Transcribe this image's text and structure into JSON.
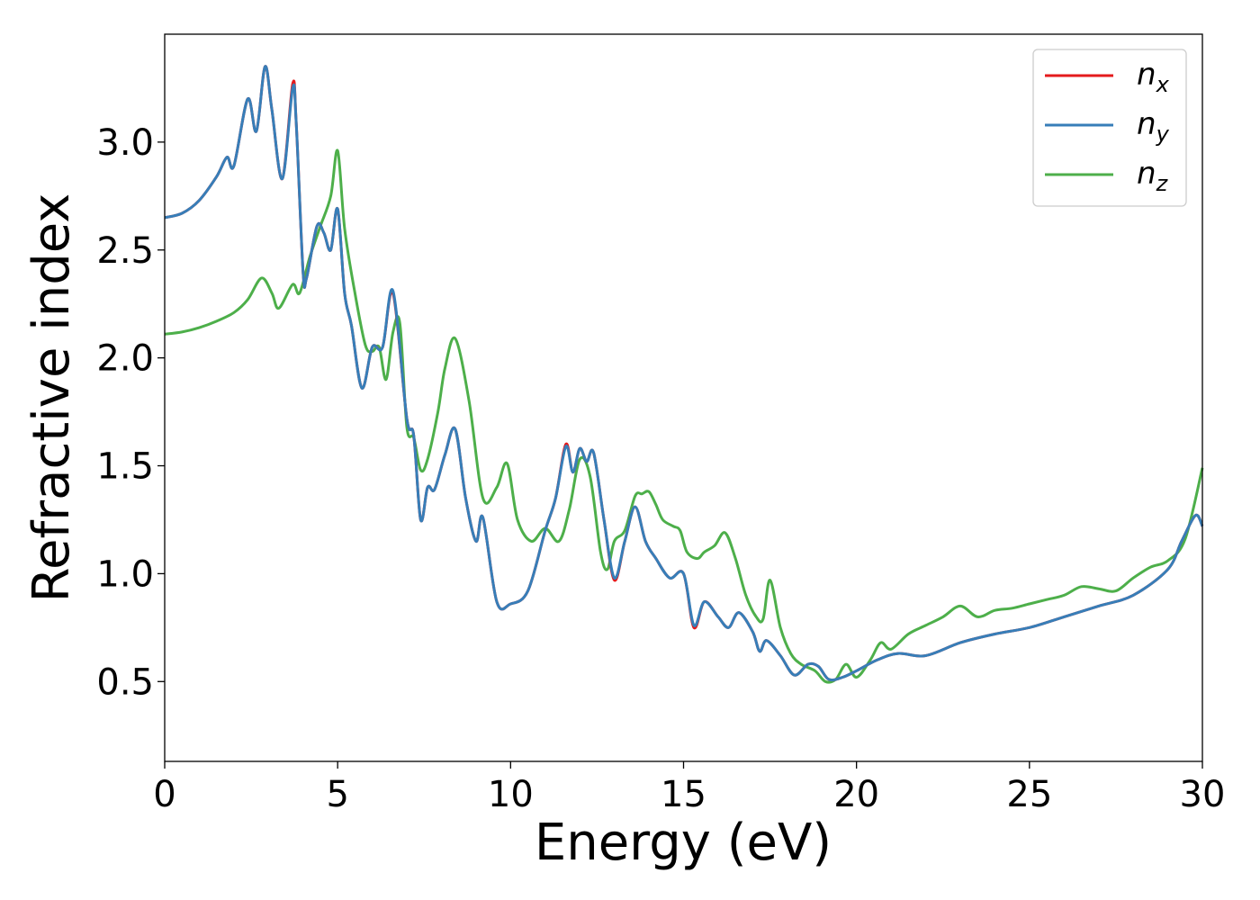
{
  "chart_data": {
    "type": "line",
    "title": "",
    "xlabel": "Energy (eV)",
    "ylabel": "Refractive index",
    "xlim": [
      0,
      30
    ],
    "ylim": [
      0.13,
      3.5
    ],
    "xticks": [
      0,
      5,
      10,
      15,
      20,
      25,
      30
    ],
    "xtick_labels": [
      "0",
      "5",
      "10",
      "15",
      "20",
      "25",
      "30"
    ],
    "yticks": [
      0.5,
      1.0,
      1.5,
      2.0,
      2.5,
      3.0
    ],
    "ytick_labels": [
      "0.5",
      "1.0",
      "1.5",
      "2.0",
      "2.5",
      "3.0"
    ],
    "grid": false,
    "legend_position": "top-right",
    "series": [
      {
        "name": "n_x",
        "label_main": "n",
        "label_sub": "x",
        "color": "#e41a1c",
        "x": [
          0,
          0.5,
          1.0,
          1.5,
          1.8,
          2.0,
          2.4,
          2.65,
          2.9,
          3.1,
          3.4,
          3.7,
          3.8,
          4.0,
          4.1,
          4.4,
          4.6,
          4.8,
          5.0,
          5.2,
          5.4,
          5.7,
          6.0,
          6.3,
          6.6,
          7.0,
          7.2,
          7.4,
          7.6,
          7.8,
          8.1,
          8.4,
          8.7,
          9.0,
          9.2,
          9.6,
          10.0,
          10.5,
          11.0,
          11.3,
          11.6,
          11.8,
          12.0,
          12.2,
          12.4,
          12.7,
          13.0,
          13.3,
          13.6,
          13.9,
          14.2,
          14.6,
          15.0,
          15.3,
          15.6,
          16.0,
          16.3,
          16.6,
          17.0,
          17.2,
          17.4,
          17.8,
          18.2,
          18.6,
          18.9,
          19.2,
          19.6,
          20.0,
          20.6,
          21.2,
          22.0,
          23.0,
          24.0,
          25.0,
          26.0,
          27.0,
          28.0,
          29.0,
          29.4,
          29.8,
          30.0
        ],
        "y": [
          2.65,
          2.67,
          2.73,
          2.84,
          2.93,
          2.89,
          3.2,
          3.05,
          3.35,
          3.15,
          2.83,
          3.27,
          3.1,
          2.4,
          2.37,
          2.61,
          2.58,
          2.5,
          2.69,
          2.3,
          2.15,
          1.86,
          2.05,
          2.05,
          2.3,
          1.72,
          1.64,
          1.25,
          1.4,
          1.39,
          1.55,
          1.67,
          1.35,
          1.15,
          1.26,
          0.87,
          0.86,
          0.92,
          1.2,
          1.35,
          1.6,
          1.47,
          1.58,
          1.52,
          1.56,
          1.25,
          0.97,
          1.15,
          1.31,
          1.15,
          1.07,
          0.98,
          1.0,
          0.75,
          0.87,
          0.8,
          0.75,
          0.82,
          0.73,
          0.64,
          0.69,
          0.62,
          0.53,
          0.58,
          0.57,
          0.51,
          0.52,
          0.55,
          0.6,
          0.63,
          0.62,
          0.68,
          0.72,
          0.75,
          0.8,
          0.85,
          0.9,
          1.02,
          1.15,
          1.27,
          1.22
        ]
      },
      {
        "name": "n_y",
        "label_main": "n",
        "label_sub": "y",
        "color": "#377eb8",
        "x": [
          0,
          0.5,
          1.0,
          1.5,
          1.8,
          2.0,
          2.4,
          2.65,
          2.9,
          3.1,
          3.4,
          3.7,
          3.8,
          4.0,
          4.1,
          4.4,
          4.6,
          4.8,
          5.0,
          5.2,
          5.4,
          5.7,
          6.0,
          6.3,
          6.6,
          7.0,
          7.2,
          7.4,
          7.6,
          7.8,
          8.1,
          8.4,
          8.7,
          9.0,
          9.2,
          9.6,
          10.0,
          10.5,
          11.0,
          11.3,
          11.6,
          11.8,
          12.0,
          12.2,
          12.4,
          12.7,
          13.0,
          13.3,
          13.6,
          13.9,
          14.2,
          14.6,
          15.0,
          15.3,
          15.6,
          16.0,
          16.3,
          16.6,
          17.0,
          17.2,
          17.4,
          17.8,
          18.2,
          18.6,
          18.9,
          19.2,
          19.6,
          20.0,
          20.6,
          21.2,
          22.0,
          23.0,
          24.0,
          25.0,
          26.0,
          27.0,
          28.0,
          29.0,
          29.4,
          29.8,
          30.0
        ],
        "y": [
          2.65,
          2.67,
          2.73,
          2.84,
          2.93,
          2.89,
          3.2,
          3.05,
          3.35,
          3.15,
          2.83,
          3.25,
          3.1,
          2.4,
          2.37,
          2.61,
          2.58,
          2.5,
          2.69,
          2.3,
          2.15,
          1.86,
          2.05,
          2.05,
          2.31,
          1.72,
          1.64,
          1.25,
          1.4,
          1.39,
          1.55,
          1.67,
          1.35,
          1.15,
          1.26,
          0.87,
          0.86,
          0.92,
          1.2,
          1.35,
          1.59,
          1.47,
          1.58,
          1.52,
          1.56,
          1.25,
          0.98,
          1.15,
          1.31,
          1.15,
          1.07,
          0.98,
          1.0,
          0.76,
          0.87,
          0.8,
          0.75,
          0.82,
          0.73,
          0.64,
          0.69,
          0.62,
          0.53,
          0.58,
          0.57,
          0.51,
          0.52,
          0.55,
          0.6,
          0.63,
          0.62,
          0.68,
          0.72,
          0.75,
          0.8,
          0.85,
          0.9,
          1.02,
          1.15,
          1.27,
          1.22
        ]
      },
      {
        "name": "n_z",
        "label_main": "n",
        "label_sub": "z",
        "color": "#4daf4a",
        "x": [
          0,
          0.5,
          1.0,
          1.5,
          2.0,
          2.4,
          2.8,
          3.1,
          3.3,
          3.7,
          3.9,
          4.2,
          4.5,
          4.8,
          5.0,
          5.2,
          5.5,
          5.8,
          6.0,
          6.2,
          6.4,
          6.6,
          6.8,
          7.0,
          7.2,
          7.4,
          7.6,
          7.9,
          8.1,
          8.4,
          8.8,
          9.2,
          9.6,
          9.9,
          10.2,
          10.6,
          11.0,
          11.4,
          11.7,
          12.0,
          12.3,
          12.6,
          12.8,
          13.0,
          13.3,
          13.6,
          13.8,
          14.0,
          14.2,
          14.4,
          14.7,
          14.9,
          15.1,
          15.4,
          15.6,
          15.9,
          16.2,
          16.5,
          16.8,
          17.1,
          17.3,
          17.5,
          17.8,
          18.1,
          18.4,
          18.8,
          19.1,
          19.4,
          19.7,
          20.0,
          20.4,
          20.7,
          21.0,
          21.5,
          22.0,
          22.5,
          23.0,
          23.5,
          24.0,
          24.5,
          25.0,
          25.5,
          26.0,
          26.5,
          27.0,
          27.5,
          28.0,
          28.5,
          29.0,
          29.5,
          30.0
        ],
        "y": [
          2.11,
          2.12,
          2.14,
          2.17,
          2.21,
          2.27,
          2.37,
          2.3,
          2.23,
          2.34,
          2.3,
          2.47,
          2.61,
          2.75,
          2.96,
          2.6,
          2.3,
          2.06,
          2.03,
          2.05,
          1.9,
          2.12,
          2.16,
          1.68,
          1.63,
          1.48,
          1.53,
          1.75,
          1.95,
          2.09,
          1.8,
          1.35,
          1.4,
          1.51,
          1.25,
          1.15,
          1.21,
          1.15,
          1.3,
          1.53,
          1.45,
          1.1,
          1.02,
          1.15,
          1.2,
          1.36,
          1.37,
          1.38,
          1.32,
          1.25,
          1.22,
          1.2,
          1.1,
          1.07,
          1.1,
          1.13,
          1.19,
          1.07,
          0.9,
          0.8,
          0.79,
          0.97,
          0.75,
          0.63,
          0.58,
          0.55,
          0.5,
          0.51,
          0.58,
          0.52,
          0.6,
          0.68,
          0.65,
          0.72,
          0.76,
          0.8,
          0.85,
          0.8,
          0.83,
          0.84,
          0.86,
          0.88,
          0.9,
          0.94,
          0.93,
          0.92,
          0.98,
          1.03,
          1.06,
          1.16,
          1.49
        ]
      }
    ]
  }
}
